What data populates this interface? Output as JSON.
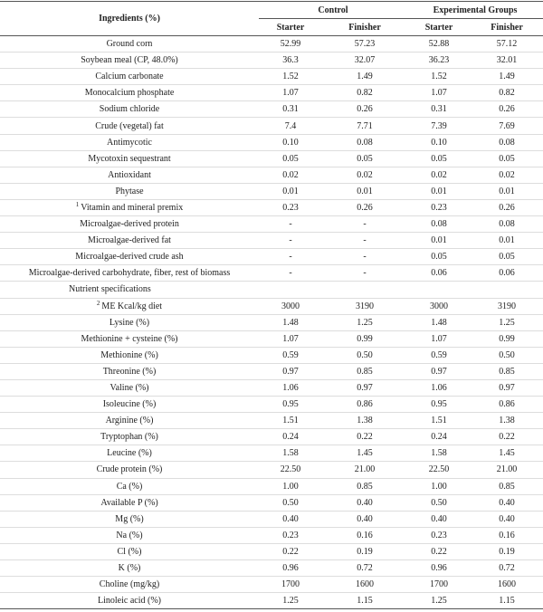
{
  "table": {
    "header": {
      "ingredients": "Ingredients (%)",
      "groups": [
        "Control",
        "Experimental Groups"
      ],
      "subheaders": [
        "Starter",
        "Finisher",
        "Starter",
        "Finisher"
      ]
    },
    "rows": [
      {
        "label": "Ground corn",
        "values": [
          "52.99",
          "57.23",
          "52.88",
          "57.12"
        ]
      },
      {
        "label": "Soybean meal (CP, 48.0%)",
        "values": [
          "36.3",
          "32.07",
          "36.23",
          "32.01"
        ]
      },
      {
        "label": "Calcium carbonate",
        "values": [
          "1.52",
          "1.49",
          "1.52",
          "1.49"
        ]
      },
      {
        "label": "Monocalcium phosphate",
        "values": [
          "1.07",
          "0.82",
          "1.07",
          "0.82"
        ]
      },
      {
        "label": "Sodium chloride",
        "values": [
          "0.31",
          "0.26",
          "0.31",
          "0.26"
        ]
      },
      {
        "label": "Crude (vegetal) fat",
        "values": [
          "7.4",
          "7.71",
          "7.39",
          "7.69"
        ]
      },
      {
        "label": "Antimycotic",
        "values": [
          "0.10",
          "0.08",
          "0.10",
          "0.08"
        ]
      },
      {
        "label": "Mycotoxin sequestrant",
        "values": [
          "0.05",
          "0.05",
          "0.05",
          "0.05"
        ]
      },
      {
        "label": "Antioxidant",
        "values": [
          "0.02",
          "0.02",
          "0.02",
          "0.02"
        ]
      },
      {
        "label": "Phytase",
        "values": [
          "0.01",
          "0.01",
          "0.01",
          "0.01"
        ]
      },
      {
        "note": "1",
        "label": "Vitamin and mineral premix",
        "values": [
          "0.23",
          "0.26",
          "0.23",
          "0.26"
        ]
      },
      {
        "label": "Microalgae-derived protein",
        "values": [
          "-",
          "-",
          "0.08",
          "0.08"
        ]
      },
      {
        "label": "Microalgae-derived fat",
        "values": [
          "-",
          "-",
          "0.01",
          "0.01"
        ]
      },
      {
        "label": "Microalgae-derived crude ash",
        "values": [
          "-",
          "-",
          "0.05",
          "0.05"
        ]
      },
      {
        "label": "Microalgae-derived carbohydrate, fiber, rest of biomass",
        "values": [
          "-",
          "-",
          "0.06",
          "0.06"
        ]
      },
      {
        "label": "Nutrient specifications"
      },
      {
        "note": "2",
        "label": "ME Kcal/kg diet",
        "values": [
          "3000",
          "3190",
          "3000",
          "3190"
        ]
      },
      {
        "label": "Lysine (%)",
        "values": [
          "1.48",
          "1.25",
          "1.48",
          "1.25"
        ]
      },
      {
        "label": "Methionine + cysteine (%)",
        "values": [
          "1.07",
          "0.99",
          "1.07",
          "0.99"
        ]
      },
      {
        "label": "Methionine (%)",
        "values": [
          "0.59",
          "0.50",
          "0.59",
          "0.50"
        ]
      },
      {
        "label": "Threonine (%)",
        "values": [
          "0.97",
          "0.85",
          "0.97",
          "0.85"
        ]
      },
      {
        "label": "Valine (%)",
        "values": [
          "1.06",
          "0.97",
          "1.06",
          "0.97"
        ]
      },
      {
        "label": "Isoleucine (%)",
        "values": [
          "0.95",
          "0.86",
          "0.95",
          "0.86"
        ]
      },
      {
        "label": "Arginine (%)",
        "values": [
          "1.51",
          "1.38",
          "1.51",
          "1.38"
        ]
      },
      {
        "label": "Tryptophan (%)",
        "values": [
          "0.24",
          "0.22",
          "0.24",
          "0.22"
        ]
      },
      {
        "label": "Leucine (%)",
        "values": [
          "1.58",
          "1.45",
          "1.58",
          "1.45"
        ]
      },
      {
        "label": "Crude protein (%)",
        "values": [
          "22.50",
          "21.00",
          "22.50",
          "21.00"
        ]
      },
      {
        "label": "Ca (%)",
        "values": [
          "1.00",
          "0.85",
          "1.00",
          "0.85"
        ]
      },
      {
        "label": "Available P (%)",
        "values": [
          "0.50",
          "0.40",
          "0.50",
          "0.40"
        ]
      },
      {
        "label": "Mg (%)",
        "values": [
          "0.40",
          "0.40",
          "0.40",
          "0.40"
        ]
      },
      {
        "label": "Na (%)",
        "values": [
          "0.23",
          "0.16",
          "0.23",
          "0.16"
        ]
      },
      {
        "label": "Cl (%)",
        "values": [
          "0.22",
          "0.19",
          "0.22",
          "0.19"
        ]
      },
      {
        "label": "K (%)",
        "values": [
          "0.96",
          "0.72",
          "0.96",
          "0.72"
        ]
      },
      {
        "label": "Choline (mg/kg)",
        "values": [
          "1700",
          "1600",
          "1700",
          "1600"
        ]
      },
      {
        "label": "Linoleic acid (%)",
        "values": [
          "1.25",
          "1.15",
          "1.25",
          "1.15"
        ]
      }
    ]
  }
}
